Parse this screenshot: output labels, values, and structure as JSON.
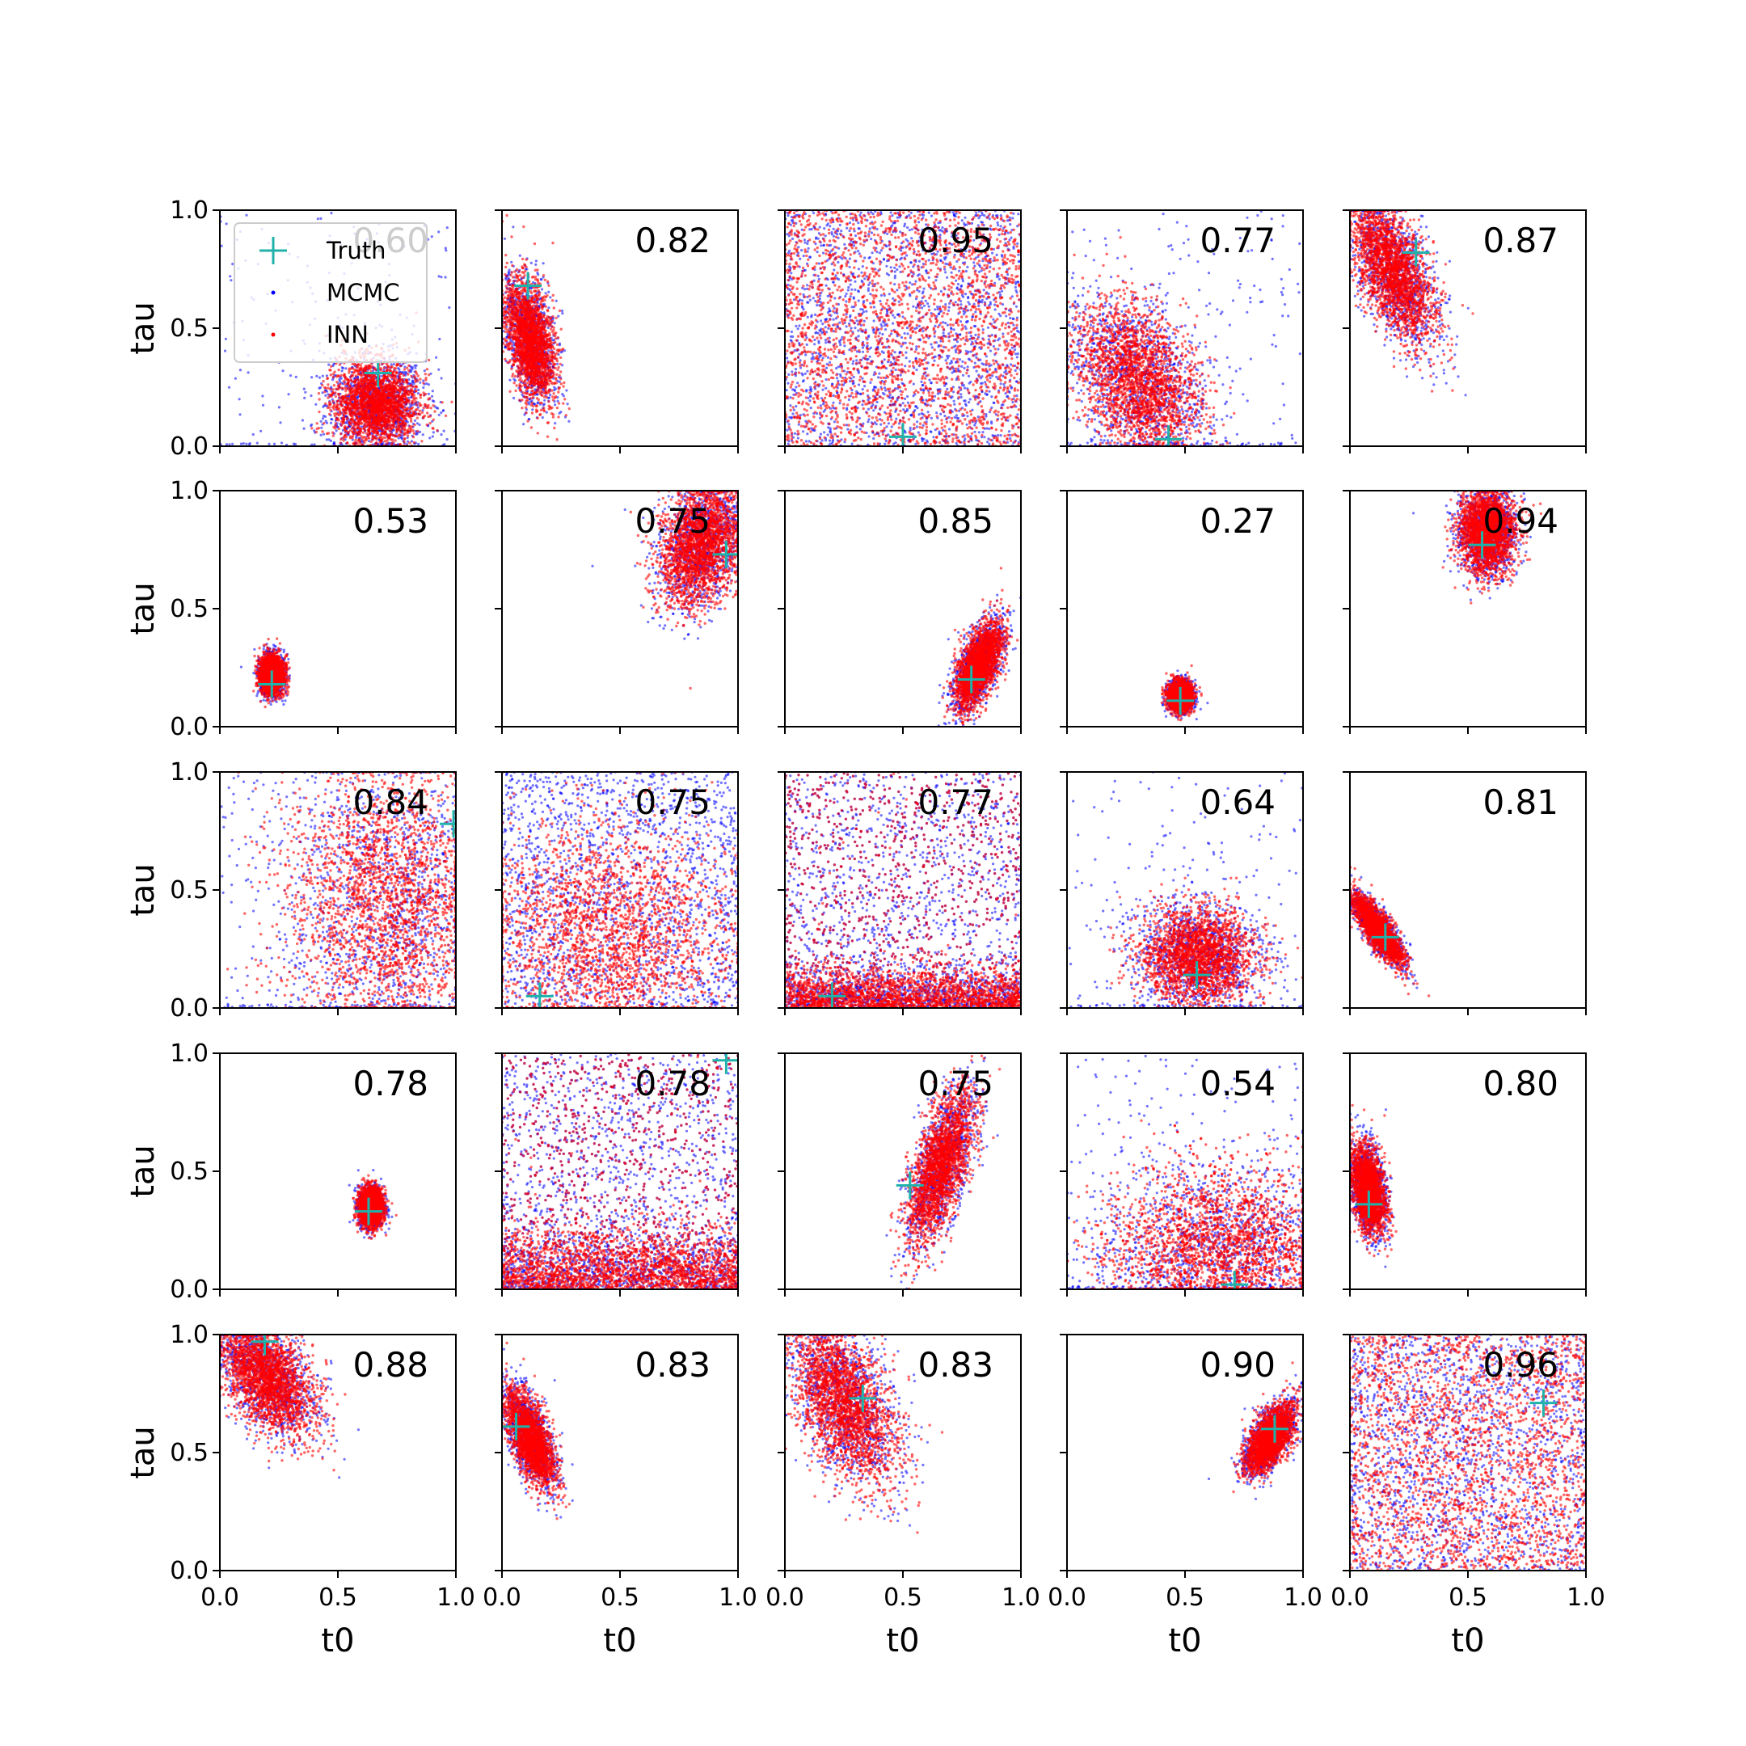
{
  "chart_data": {
    "type": "scatter",
    "layout": {
      "rows": 5,
      "cols": 5
    },
    "xlabel": "t0",
    "ylabel": "tau",
    "xlim": [
      0,
      1
    ],
    "ylim": [
      0,
      1
    ],
    "ticks": [
      0.0,
      0.5,
      1.0
    ],
    "tick_labels": [
      "0.0",
      "0.5",
      "1.0"
    ],
    "grid": false,
    "legend": {
      "placement": "top-left of first panel",
      "entries": [
        {
          "name": "Truth",
          "marker": "plus",
          "color": "#20b2aa"
        },
        {
          "name": "MCMC",
          "marker": "dot",
          "color": "#0000ff"
        },
        {
          "name": "INN",
          "marker": "dot",
          "color": "#ff0000"
        }
      ]
    },
    "series_colors": {
      "Truth": "#20b2aa",
      "MCMC": "#0000ff",
      "INN": "#ff0000"
    },
    "panels": [
      {
        "score": "0.60",
        "truth": [
          0.67,
          0.31
        ],
        "cluster": {
          "kind": "blob",
          "cx": 0.66,
          "cy": 0.18,
          "sx": 0.09,
          "sy": 0.09,
          "rho": 0.0
        },
        "mcmc_spread": "wide"
      },
      {
        "score": "0.82",
        "truth": [
          0.11,
          0.68
        ],
        "cluster": {
          "kind": "blob",
          "cx": 0.12,
          "cy": 0.45,
          "sx": 0.05,
          "sy": 0.13,
          "rho": -0.4
        },
        "mcmc_spread": "tight"
      },
      {
        "score": "0.95",
        "truth": [
          0.5,
          0.04
        ],
        "cluster": {
          "kind": "uniform"
        },
        "mcmc_spread": "uniform"
      },
      {
        "score": "0.77",
        "truth": [
          0.43,
          0.03
        ],
        "cluster": {
          "kind": "blob",
          "cx": 0.3,
          "cy": 0.28,
          "sx": 0.13,
          "sy": 0.16,
          "rho": -0.3
        },
        "mcmc_spread": "wide"
      },
      {
        "score": "0.87",
        "truth": [
          0.28,
          0.82
        ],
        "cluster": {
          "kind": "blob",
          "cx": 0.18,
          "cy": 0.75,
          "sx": 0.09,
          "sy": 0.15,
          "rho": -0.6
        },
        "mcmc_spread": "tight"
      },
      {
        "score": "0.53",
        "truth": [
          0.22,
          0.18
        ],
        "cluster": {
          "kind": "blob",
          "cx": 0.22,
          "cy": 0.22,
          "sx": 0.025,
          "sy": 0.04,
          "rho": 0.0
        },
        "mcmc_spread": "tight"
      },
      {
        "score": "0.75",
        "truth": [
          0.95,
          0.73
        ],
        "cluster": {
          "kind": "blob",
          "cx": 0.85,
          "cy": 0.78,
          "sx": 0.09,
          "sy": 0.13,
          "rho": 0.3
        },
        "mcmc_spread": "tight"
      },
      {
        "score": "0.85",
        "truth": [
          0.79,
          0.2
        ],
        "cluster": {
          "kind": "blob",
          "cx": 0.82,
          "cy": 0.26,
          "sx": 0.05,
          "sy": 0.09,
          "rho": 0.6
        },
        "mcmc_spread": "tight"
      },
      {
        "score": "0.27",
        "truth": [
          0.48,
          0.11
        ],
        "cluster": {
          "kind": "blob",
          "cx": 0.48,
          "cy": 0.13,
          "sx": 0.025,
          "sy": 0.03,
          "rho": 0.0
        },
        "mcmc_spread": "tight"
      },
      {
        "score": "0.94",
        "truth": [
          0.56,
          0.77
        ],
        "cluster": {
          "kind": "blob",
          "cx": 0.58,
          "cy": 0.83,
          "sx": 0.06,
          "sy": 0.09,
          "rho": 0.0
        },
        "mcmc_spread": "tight"
      },
      {
        "score": "0.84",
        "truth": [
          0.99,
          0.78
        ],
        "cluster": {
          "kind": "blob",
          "cx": 0.72,
          "cy": 0.45,
          "sx": 0.22,
          "sy": 0.3,
          "rho": 0.0
        },
        "mcmc_spread": "wide"
      },
      {
        "score": "0.75",
        "truth": [
          0.16,
          0.05
        ],
        "cluster": {
          "kind": "blob",
          "cx": 0.45,
          "cy": 0.3,
          "sx": 0.28,
          "sy": 0.25,
          "rho": 0.0
        },
        "mcmc_spread": "uniform"
      },
      {
        "score": "0.77",
        "truth": [
          0.2,
          0.05
        ],
        "cluster": {
          "kind": "band",
          "cx": 0.5,
          "cy": 0.05,
          "sx": 0.3,
          "sy": 0.08,
          "rho": 0.0
        },
        "mcmc_spread": "uniform"
      },
      {
        "score": "0.64",
        "truth": [
          0.55,
          0.14
        ],
        "cluster": {
          "kind": "blob",
          "cx": 0.55,
          "cy": 0.22,
          "sx": 0.12,
          "sy": 0.1,
          "rho": 0.0
        },
        "mcmc_spread": "wide"
      },
      {
        "score": "0.81",
        "truth": [
          0.15,
          0.3
        ],
        "cluster": {
          "kind": "blob",
          "cx": 0.12,
          "cy": 0.33,
          "sx": 0.05,
          "sy": 0.07,
          "rho": -0.8
        },
        "mcmc_spread": "tight"
      },
      {
        "score": "0.78",
        "truth": [
          0.63,
          0.33
        ],
        "cluster": {
          "kind": "blob",
          "cx": 0.64,
          "cy": 0.35,
          "sx": 0.025,
          "sy": 0.04,
          "rho": 0.0
        },
        "mcmc_spread": "tight"
      },
      {
        "score": "0.78",
        "truth": [
          0.95,
          0.97
        ],
        "cluster": {
          "kind": "band",
          "cx": 0.5,
          "cy": 0.08,
          "sx": 0.3,
          "sy": 0.12,
          "rho": 0.0
        },
        "mcmc_spread": "uniform"
      },
      {
        "score": "0.75",
        "truth": [
          0.53,
          0.44
        ],
        "cluster": {
          "kind": "blob",
          "cx": 0.66,
          "cy": 0.52,
          "sx": 0.07,
          "sy": 0.16,
          "rho": 0.65
        },
        "mcmc_spread": "tight"
      },
      {
        "score": "0.54",
        "truth": [
          0.71,
          0.02
        ],
        "cluster": {
          "kind": "blob",
          "cx": 0.65,
          "cy": 0.15,
          "sx": 0.25,
          "sy": 0.18,
          "rho": 0.0
        },
        "mcmc_spread": "wide"
      },
      {
        "score": "0.80",
        "truth": [
          0.08,
          0.36
        ],
        "cluster": {
          "kind": "blob",
          "cx": 0.08,
          "cy": 0.42,
          "sx": 0.035,
          "sy": 0.09,
          "rho": -0.3
        },
        "mcmc_spread": "tight"
      },
      {
        "score": "0.88",
        "truth": [
          0.19,
          0.97
        ],
        "cluster": {
          "kind": "blob",
          "cx": 0.2,
          "cy": 0.82,
          "sx": 0.1,
          "sy": 0.12,
          "rho": -0.5
        },
        "mcmc_spread": "tight"
      },
      {
        "score": "0.83",
        "truth": [
          0.06,
          0.61
        ],
        "cluster": {
          "kind": "blob",
          "cx": 0.12,
          "cy": 0.56,
          "sx": 0.05,
          "sy": 0.1,
          "rho": -0.6
        },
        "mcmc_spread": "tight"
      },
      {
        "score": "0.83",
        "truth": [
          0.33,
          0.73
        ],
        "cluster": {
          "kind": "blob",
          "cx": 0.25,
          "cy": 0.72,
          "sx": 0.11,
          "sy": 0.17,
          "rho": -0.5
        },
        "mcmc_spread": "tight"
      },
      {
        "score": "0.90",
        "truth": [
          0.88,
          0.6
        ],
        "cluster": {
          "kind": "blob",
          "cx": 0.86,
          "cy": 0.56,
          "sx": 0.05,
          "sy": 0.07,
          "rho": 0.6
        },
        "mcmc_spread": "tight"
      },
      {
        "score": "0.96",
        "truth": [
          0.82,
          0.71
        ],
        "cluster": {
          "kind": "uniform"
        },
        "mcmc_spread": "uniform"
      }
    ]
  }
}
